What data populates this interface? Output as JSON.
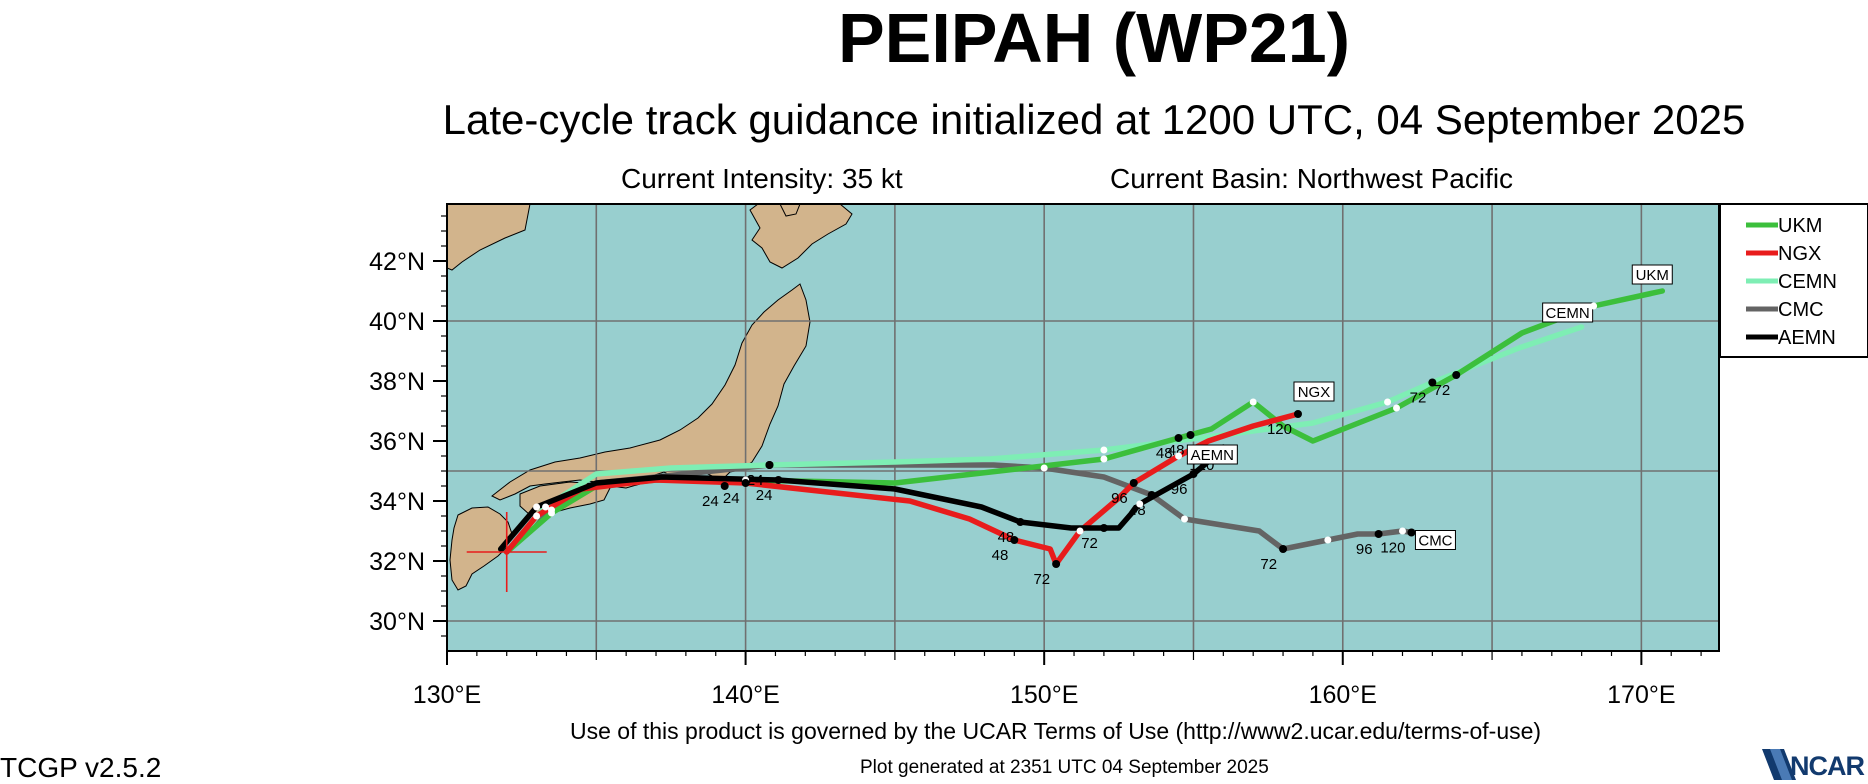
{
  "title": "PEIPAH (WP21)",
  "subtitle": "Late-cycle track guidance initialized at 1200 UTC, 04 September 2025",
  "current_intensity": "Current Intensity: 35 kt",
  "current_basin": "Current Basin: Northwest Pacific",
  "terms": "Use of this product is governed by the UCAR Terms of Use (http://www2.ucar.edu/terms-of-use)",
  "generated": "Plot generated at 2351 UTC   04 September 2025",
  "version": "TCGP v2.5.2",
  "logo_text": "NCAR",
  "colors": {
    "ocean": "#98cfcf",
    "land": "#d2b48c",
    "grid": "#707070",
    "UKM": "#3cbf3c",
    "NGX": "#e81c1c",
    "CEMN": "#7eeeb4",
    "CMC": "#646464",
    "AEMN": "#000000"
  },
  "chart_data": {
    "type": "map-tracks",
    "lon_range": [
      130,
      172.6
    ],
    "lat_range": [
      29.0,
      43.9
    ],
    "x_ticks": [
      130,
      140,
      150,
      160,
      170
    ],
    "x_tick_labels": [
      "130°E",
      "140°E",
      "150°E",
      "160°E",
      "170°E"
    ],
    "y_ticks": [
      30,
      32,
      34,
      36,
      38,
      40,
      42
    ],
    "y_tick_labels": [
      "30°N",
      "32°N",
      "34°N",
      "36°N",
      "38°N",
      "40°N",
      "42°N"
    ],
    "initial_position": {
      "lon": 132.0,
      "lat": 32.3
    },
    "legend": [
      "UKM",
      "NGX",
      "CEMN",
      "CMC",
      "AEMN"
    ],
    "legend_position": "top-right, outside",
    "tracks": [
      {
        "name": "UKM",
        "points": [
          [
            132.0,
            32.3
          ],
          [
            133.5,
            33.6
          ],
          [
            135.0,
            34.5
          ],
          [
            137.0,
            34.7
          ],
          [
            140.0,
            34.7
          ],
          [
            145.0,
            34.6
          ],
          [
            148.5,
            35.0
          ],
          [
            152.0,
            35.4
          ],
          [
            154.5,
            36.1
          ],
          [
            155.6,
            36.4
          ],
          [
            157.0,
            37.3
          ],
          [
            158.0,
            36.5
          ],
          [
            159.0,
            36.0
          ],
          [
            161.8,
            37.1
          ],
          [
            163.8,
            38.2
          ],
          [
            166.0,
            39.6
          ],
          [
            168.4,
            40.5
          ],
          [
            170.7,
            41.0
          ]
        ],
        "labeled": [
          {
            "lon": 139.3,
            "lat": 34.5,
            "text": "24"
          },
          {
            "lon": 154.5,
            "lat": 36.1,
            "text": "48"
          },
          {
            "lon": 163.8,
            "lat": 38.2,
            "text": "72"
          }
        ],
        "end_label": "UKM"
      },
      {
        "name": "NGX",
        "points": [
          [
            132.0,
            32.3
          ],
          [
            133.0,
            33.5
          ],
          [
            134.5,
            34.4
          ],
          [
            137.0,
            34.7
          ],
          [
            140.0,
            34.6
          ],
          [
            145.5,
            34.0
          ],
          [
            147.5,
            33.4
          ],
          [
            149.0,
            32.7
          ],
          [
            150.2,
            32.4
          ],
          [
            150.4,
            31.9
          ],
          [
            151.2,
            33.0
          ],
          [
            152.5,
            34.1
          ],
          [
            153.0,
            34.6
          ],
          [
            154.5,
            35.5
          ],
          [
            155.5,
            36.0
          ],
          [
            157.0,
            36.5
          ],
          [
            158.5,
            36.9
          ]
        ],
        "labeled": [
          {
            "lon": 140.0,
            "lat": 34.6,
            "text": "24"
          },
          {
            "lon": 149.0,
            "lat": 32.7,
            "text": "48"
          },
          {
            "lon": 150.4,
            "lat": 31.9,
            "text": "72"
          },
          {
            "lon": 153.0,
            "lat": 34.6,
            "text": "96"
          },
          {
            "lon": 158.5,
            "lat": 36.9,
            "text": "120"
          }
        ],
        "end_label": "NGX"
      },
      {
        "name": "CEMN",
        "points": [
          [
            132.0,
            32.3
          ],
          [
            133.3,
            33.8
          ],
          [
            135.0,
            34.9
          ],
          [
            137.5,
            35.1
          ],
          [
            140.8,
            35.2
          ],
          [
            145.0,
            35.3
          ],
          [
            148.2,
            35.4
          ],
          [
            152.0,
            35.7
          ],
          [
            156.0,
            36.2
          ],
          [
            159.0,
            36.6
          ],
          [
            161.5,
            37.3
          ],
          [
            163.0,
            37.95
          ],
          [
            165.9,
            39.1
          ],
          [
            168.0,
            39.8
          ]
        ],
        "labeled": [
          {
            "lon": 140.8,
            "lat": 35.2,
            "text": "24"
          },
          {
            "lon": 154.9,
            "lat": 36.2,
            "text": "48"
          },
          {
            "lon": 163.0,
            "lat": 37.95,
            "text": "72"
          }
        ],
        "end_label": "CEMN"
      },
      {
        "name": "CMC",
        "points": [
          [
            132.0,
            32.3
          ],
          [
            133.5,
            33.7
          ],
          [
            135.0,
            34.6
          ],
          [
            137.0,
            34.8
          ],
          [
            140.8,
            35.2
          ],
          [
            144.0,
            35.2
          ],
          [
            148.3,
            35.2
          ],
          [
            150.0,
            35.1
          ],
          [
            152.0,
            34.8
          ],
          [
            153.6,
            34.2
          ],
          [
            154.7,
            33.4
          ],
          [
            157.2,
            33.0
          ],
          [
            158.0,
            32.4
          ],
          [
            159.5,
            32.7
          ],
          [
            160.5,
            32.9
          ],
          [
            161.2,
            32.9
          ],
          [
            162.0,
            33.0
          ],
          [
            162.3,
            32.95
          ]
        ],
        "labeled": [
          {
            "lon": 140.8,
            "lat": 35.2,
            "text": "24"
          },
          {
            "lon": 153.6,
            "lat": 34.2,
            "text": "48"
          },
          {
            "lon": 158.0,
            "lat": 32.4,
            "text": "72"
          },
          {
            "lon": 161.2,
            "lat": 32.9,
            "text": "96"
          },
          {
            "lon": 162.3,
            "lat": 32.95,
            "text": "120"
          }
        ],
        "end_label": "CMC"
      },
      {
        "name": "AEMN",
        "points": [
          [
            131.8,
            32.4
          ],
          [
            133.0,
            33.8
          ],
          [
            135.0,
            34.6
          ],
          [
            137.2,
            34.8
          ],
          [
            141.1,
            34.7
          ],
          [
            145.0,
            34.4
          ],
          [
            147.9,
            33.8
          ],
          [
            149.2,
            33.3
          ],
          [
            150.9,
            33.1
          ],
          [
            152.5,
            33.1
          ],
          [
            153.2,
            33.9
          ],
          [
            155.0,
            34.9
          ],
          [
            155.6,
            35.4
          ],
          [
            156.0,
            35.8
          ]
        ],
        "labeled": [
          {
            "lon": 141.1,
            "lat": 34.7,
            "text": "24"
          },
          {
            "lon": 149.2,
            "lat": 33.3,
            "text": "48"
          },
          {
            "lon": 152.0,
            "lat": 33.1,
            "text": "72"
          },
          {
            "lon": 155.0,
            "lat": 34.9,
            "text": "96"
          },
          {
            "lon": 155.9,
            "lat": 35.7,
            "text": "120"
          }
        ],
        "end_label": "AEMN"
      }
    ]
  }
}
